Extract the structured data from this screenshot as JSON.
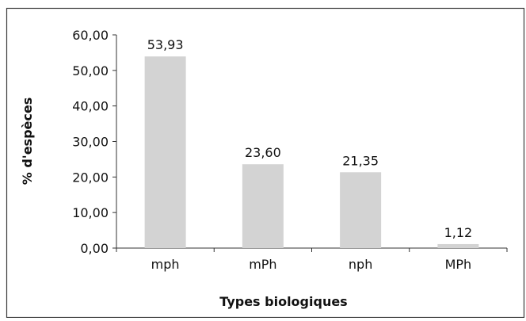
{
  "chart_data": {
    "type": "bar",
    "title": "",
    "xlabel": "Types biologiques",
    "ylabel": "% d'espèces",
    "categories": [
      "mph",
      "mPh",
      "nph",
      "MPh"
    ],
    "values": [
      53.93,
      23.6,
      21.35,
      1.12
    ],
    "value_labels": [
      "53,93",
      "23,60",
      "21,35",
      "1,12"
    ],
    "ylim": [
      0,
      60
    ],
    "yticks": [
      0,
      10,
      20,
      30,
      40,
      50,
      60
    ],
    "ytick_labels": [
      "0,00",
      "10,00",
      "20,00",
      "30,00",
      "40,00",
      "50,00",
      "60,00"
    ],
    "grid": false,
    "legend": "none",
    "bar_color": "#d3d3d3"
  }
}
